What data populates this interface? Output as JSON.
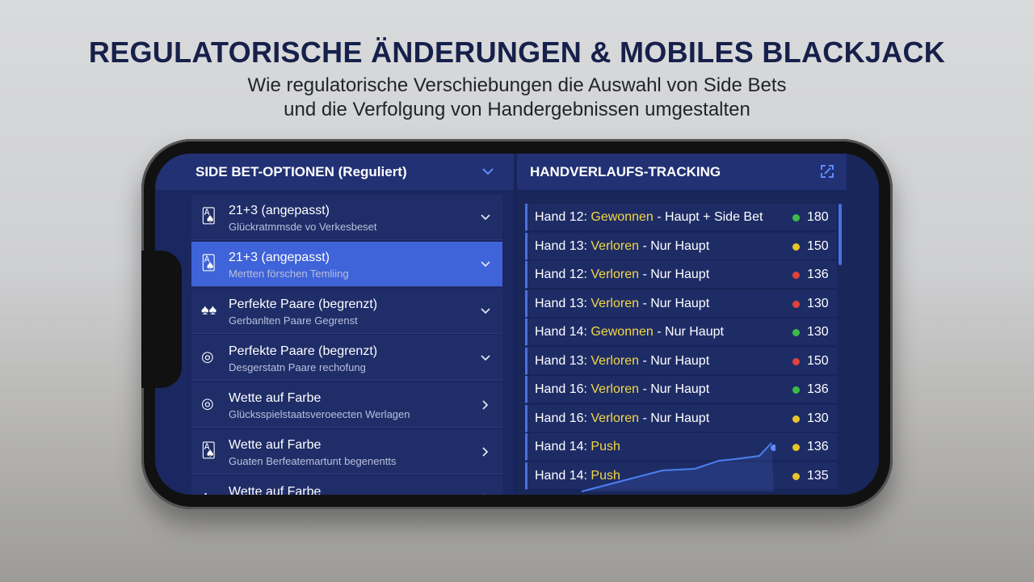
{
  "header": {
    "title": "REGULATORISCHE ÄNDERUNGEN & MOBILES BLACKJACK",
    "subtitle": [
      "Wie regulatorische Verschiebungen die Auswahl von Side Bets",
      "und die Verfolgung von Handergebnissen umgestalten"
    ]
  },
  "side_bets": {
    "title": "SIDE BET-OPTIONEN (Reguliert)",
    "items": [
      {
        "label": "21+3 (angepasst)",
        "sub": "Glückratmmsde vo Verkesbeset",
        "chevron": "down"
      },
      {
        "label": "21+3 (angepasst)",
        "sub": "Mertten förschen Temliing",
        "chevron": "down",
        "selected": true
      },
      {
        "label": "Perfekte Paare (begrenzt)",
        "sub": "Gerbanlten Paare Gegrenst",
        "chevron": "down"
      },
      {
        "label": "Perfekte Paare (begrenzt)",
        "sub": "Desgerstatn Paare rechofung",
        "chevron": "down"
      },
      {
        "label": "Wette auf Farbe",
        "sub": "Glücksspielstaatsveroeecten Werlagen",
        "chevron": "right"
      },
      {
        "label": "Wette auf Farbe",
        "sub": "Guaten Berfeatemartunt begenentts",
        "chevron": "right"
      },
      {
        "label": "Wette auf Farbe",
        "chevron": "right"
      }
    ]
  },
  "tracking": {
    "title": "HANDVERLAUFS-TRACKING",
    "rows": [
      {
        "hand": "Hand 12:",
        "result": "Gewonnen",
        "detail": "- Haupt + Side Bet",
        "status": "#3dbb4a",
        "value": 180
      },
      {
        "hand": "Hand 13:",
        "result": "Verloren",
        "detail": "- Nur Haupt",
        "status": "#e8c52a",
        "value": 150
      },
      {
        "hand": "Hand 12:",
        "result": "Verloren",
        "detail": "- Nur Haupt",
        "status": "#e0433a",
        "value": 136
      },
      {
        "hand": "Hand 13:",
        "result": "Verloren",
        "detail": "- Nur Haupt",
        "status": "#e0433a",
        "value": 130
      },
      {
        "hand": "Hand 14:",
        "result": "Gewonnen",
        "detail": "- Nur Haupt",
        "status": "#3dbb4a",
        "value": 130
      },
      {
        "hand": "Hand 13:",
        "result": "Verloren",
        "detail": "- Nur Haupt",
        "status": "#e0433a",
        "value": 150
      },
      {
        "hand": "Hand 16:",
        "result": "Verloren",
        "detail": "- Nur Haupt",
        "status": "#3dbb4a",
        "value": 136
      },
      {
        "hand": "Hand 16:",
        "result": "Verloren",
        "detail": "- Nur Haupt",
        "status": "#e8c52a",
        "value": 130
      },
      {
        "hand": "Hand 14:",
        "result": "Push",
        "status": "#e8c52a",
        "value": 136
      },
      {
        "hand": "Hand 14:",
        "result": "Push",
        "status": "#e8c52a",
        "value": 135
      }
    ]
  }
}
